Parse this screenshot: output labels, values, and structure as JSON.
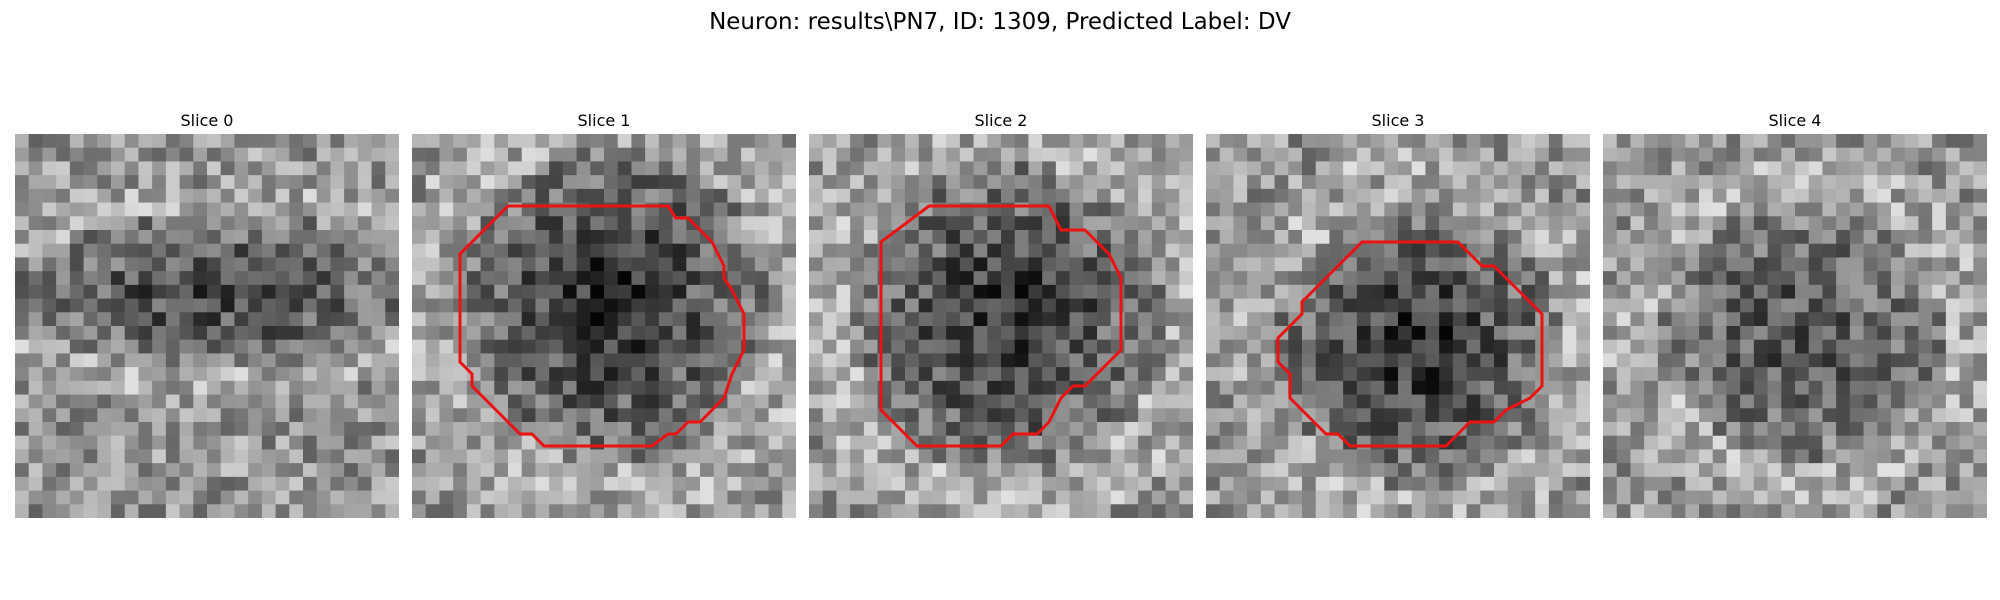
{
  "figure": {
    "title": "Neuron: results\\PN7, ID: 1309, Predicted Label: DV"
  },
  "panels": [
    {
      "title": "Slice 0",
      "has_outline": false,
      "dark_blob": {
        "cx": 14,
        "cy": 11,
        "rx": 13,
        "ry": 5,
        "strength": 70
      }
    },
    {
      "title": "Slice 1",
      "has_outline": true,
      "dark_blob": {
        "cx": 14,
        "cy": 12,
        "rx": 10,
        "ry": 10,
        "strength": 95
      }
    },
    {
      "title": "Slice 2",
      "has_outline": true,
      "dark_blob": {
        "cx": 14,
        "cy": 13,
        "rx": 10,
        "ry": 10,
        "strength": 90
      }
    },
    {
      "title": "Slice 3",
      "has_outline": true,
      "dark_blob": {
        "cx": 15,
        "cy": 15,
        "rx": 9,
        "ry": 9,
        "strength": 95
      }
    },
    {
      "title": "Slice 4",
      "has_outline": false,
      "dark_blob": {
        "cx": 14,
        "cy": 14,
        "rx": 9,
        "ry": 8,
        "strength": 55
      }
    }
  ],
  "outline_color": "#ee1111",
  "grid_cells": 28
}
